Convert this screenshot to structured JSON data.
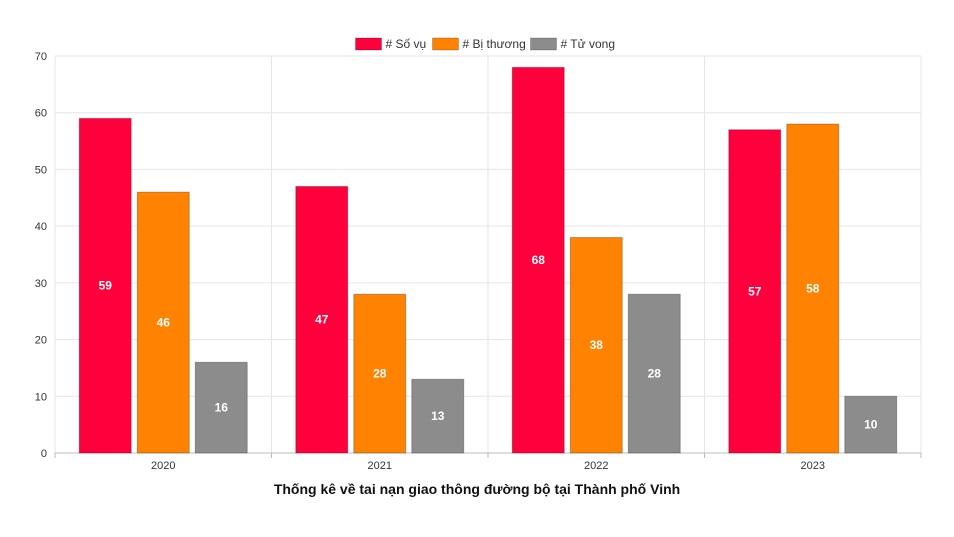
{
  "chart_data": {
    "type": "bar",
    "title": "Thống kê về tai nạn giao thông đường bộ tại Thành phố Vinh",
    "xlabel": "",
    "ylabel": "",
    "categories": [
      "2020",
      "2021",
      "2022",
      "2023"
    ],
    "ylim": [
      0,
      70
    ],
    "yticks": [
      0,
      10,
      20,
      30,
      40,
      50,
      60,
      70
    ],
    "grid": true,
    "legend_position": "top-center",
    "series": [
      {
        "name": "# Số vụ",
        "color": "#ff003c",
        "values": [
          59,
          47,
          68,
          57
        ]
      },
      {
        "name": "# Bị thương",
        "color": "#ff8200",
        "values": [
          46,
          28,
          38,
          58
        ]
      },
      {
        "name": "# Tử vong",
        "color": "#8c8c8c",
        "values": [
          16,
          13,
          28,
          10
        ]
      }
    ]
  }
}
